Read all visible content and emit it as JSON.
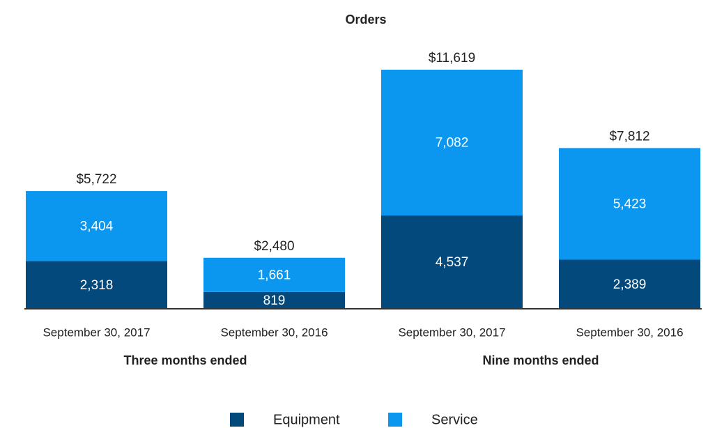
{
  "chart_data": {
    "type": "stacked-bar",
    "title": "Orders",
    "categories": [
      "September 30, 2017",
      "September 30, 2016",
      "September 30, 2017",
      "September 30, 2016"
    ],
    "groups": [
      "Three months ended",
      "Nine months ended"
    ],
    "series": [
      {
        "name": "Equipment",
        "color": "#04497c",
        "values": [
          2318,
          819,
          4537,
          2389
        ],
        "value_labels": [
          "2,318",
          "819",
          "4,537",
          "2,389"
        ]
      },
      {
        "name": "Service",
        "color": "#0b97ef",
        "values": [
          3404,
          1661,
          7082,
          5423
        ],
        "value_labels": [
          "3,404",
          "1,661",
          "7,082",
          "5,423"
        ]
      }
    ],
    "totals": {
      "values": [
        5722,
        2480,
        11619,
        7812
      ],
      "value_labels": [
        "$5,722",
        "$2,480",
        "$11,619",
        "$7,812"
      ]
    }
  }
}
